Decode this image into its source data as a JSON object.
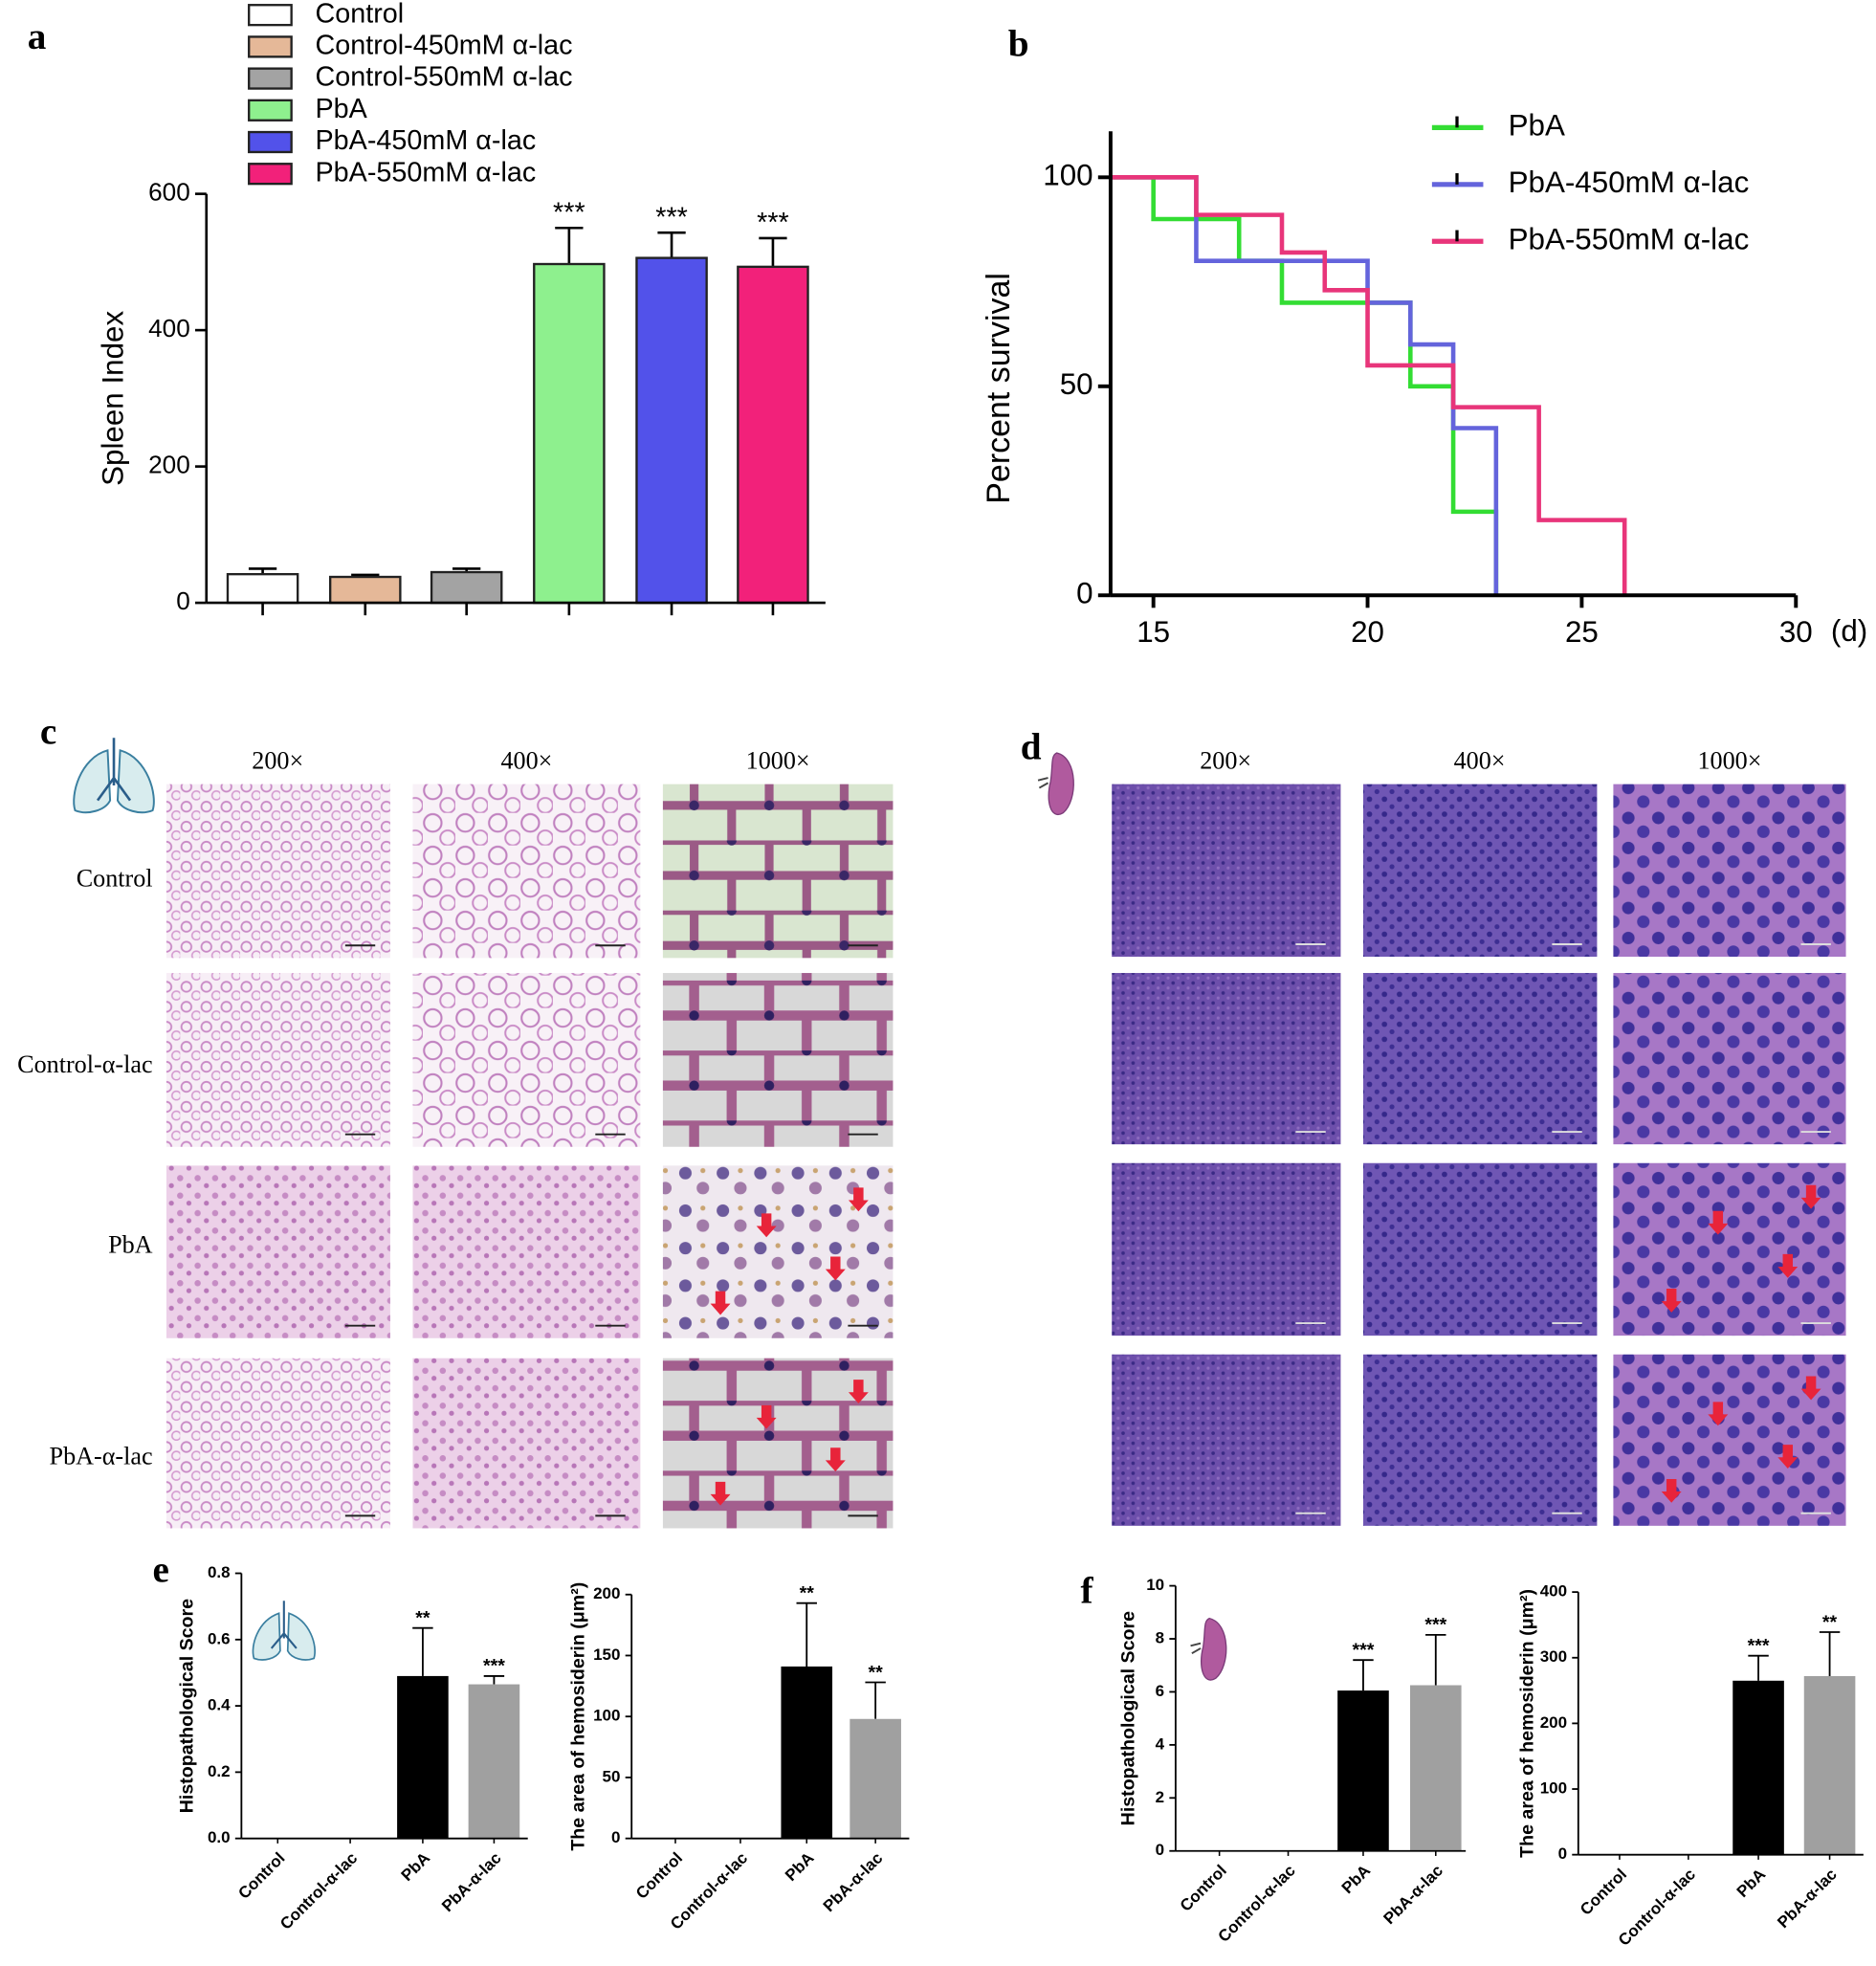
{
  "panel_labels": [
    "a",
    "b",
    "c",
    "d",
    "e",
    "f"
  ],
  "histology": [
    {
      "magnifications": [
        "200×",
        "400×",
        "1000×"
      ],
      "groups": [
        "Control",
        "Control-α-lac",
        "PbA",
        "PbA-α-lac"
      ]
    },
    {
      "magnifications": [
        "200×",
        "400×",
        "1000×"
      ]
    }
  ],
  "chart_data": [
    {
      "type": "bar",
      "ylabel": "Spleen Index",
      "ylim": [
        0,
        600
      ],
      "yticks": [
        0,
        200,
        400,
        600
      ],
      "series": [
        {
          "name": "Control",
          "color": "#ffffff",
          "values": [
            42
          ],
          "errors": [
            8
          ]
        },
        {
          "name": "Control-450mM α-lac",
          "color": "#e5b898",
          "values": [
            38
          ],
          "errors": [
            3
          ]
        },
        {
          "name": "Control-550mM α-lac",
          "color": "#a3a3a3",
          "values": [
            45
          ],
          "errors": [
            5
          ]
        },
        {
          "name": "PbA",
          "color": "#8ef08e",
          "values": [
            497
          ],
          "errors": [
            53
          ],
          "annotations": [
            "***"
          ]
        },
        {
          "name": "PbA-450mM α-lac",
          "color": "#5252ea",
          "values": [
            506
          ],
          "errors": [
            37
          ],
          "annotations": [
            "***"
          ]
        },
        {
          "name": "PbA-550mM α-lac",
          "color": "#f2217a",
          "values": [
            493
          ],
          "errors": [
            42
          ],
          "annotations": [
            "***"
          ]
        }
      ]
    },
    {
      "type": "line",
      "drawstyle": "steps-post",
      "ylabel": "Percent survival",
      "xlabel": "(d)",
      "xlim": [
        14,
        30
      ],
      "xticks": [
        15,
        20,
        25,
        30
      ],
      "ylim": [
        0,
        111
      ],
      "yticks": [
        0,
        50,
        100
      ],
      "series": [
        {
          "name": "PbA",
          "color": "#33dd33",
          "x": [
            14,
            15,
            17,
            18,
            21,
            22,
            23
          ],
          "values": [
            100,
            90,
            80,
            70,
            50,
            20,
            0
          ]
        },
        {
          "name": "PbA-450mM α-lac",
          "color": "#6464dc",
          "x": [
            14,
            16,
            20,
            21,
            22,
            23
          ],
          "values": [
            100,
            80,
            70,
            60,
            40,
            0
          ]
        },
        {
          "name": "PbA-550mM α-lac",
          "color": "#e8357a",
          "x": [
            14,
            16,
            18,
            19,
            20,
            22,
            24,
            26
          ],
          "values": [
            100,
            91,
            82,
            73,
            55,
            45,
            18,
            0
          ]
        }
      ]
    },
    {
      "type": "bar",
      "ylabel": "Histopathological Score",
      "ylim": [
        0,
        0.8
      ],
      "yticks": [
        {
          "value": 0,
          "label": "0.0"
        },
        0.2,
        0.4,
        0.6,
        0.8
      ],
      "categories": [
        "Control",
        "Control-α-lac",
        "PbA",
        "PbA-α-lac"
      ],
      "values": [
        0,
        0,
        0.49,
        0.465
      ],
      "errors": [
        0,
        0,
        0.145,
        0.025
      ],
      "annotations": [
        null,
        null,
        "**",
        "***"
      ],
      "colors": [
        "#000000",
        "#a0a0a0",
        "#000000",
        "#a0a0a0"
      ]
    },
    {
      "type": "bar",
      "ylabel": "The area of hemosiderin (μm²)",
      "ylim": [
        0,
        200
      ],
      "yticks": [
        0,
        50,
        100,
        150,
        200
      ],
      "categories": [
        "Control",
        "Control-α-lac",
        "PbA",
        "PbA-α-lac"
      ],
      "values": [
        0,
        0,
        141,
        98
      ],
      "errors": [
        0,
        0,
        52,
        30
      ],
      "annotations": [
        null,
        null,
        "**",
        "**"
      ],
      "colors": [
        "#000000",
        "#a0a0a0",
        "#000000",
        "#a0a0a0"
      ]
    },
    {
      "type": "bar",
      "ylabel": "Histopathological Score",
      "ylim": [
        0,
        10
      ],
      "yticks": [
        0,
        2,
        4,
        6,
        8,
        10
      ],
      "categories": [
        "Control",
        "Control-α-lac",
        "PbA",
        "PbA-α-lac"
      ],
      "values": [
        0,
        0,
        6.05,
        6.25
      ],
      "errors": [
        0,
        0,
        1.15,
        1.9
      ],
      "annotations": [
        null,
        null,
        "***",
        "***"
      ],
      "colors": [
        "#000000",
        "#a0a0a0",
        "#000000",
        "#a0a0a0"
      ]
    },
    {
      "type": "bar",
      "ylabel": "The area of hemosiderin (μm²)",
      "ylim": [
        0,
        400
      ],
      "yticks": [
        0,
        100,
        200,
        300,
        400
      ],
      "categories": [
        "Control",
        "Control-α-lac",
        "PbA",
        "PbA-α-lac"
      ],
      "values": [
        0,
        0,
        265,
        272
      ],
      "errors": [
        0,
        0,
        38,
        67
      ],
      "annotations": [
        null,
        null,
        "***",
        "**"
      ],
      "colors": [
        "#000000",
        "#a0a0a0",
        "#000000",
        "#a0a0a0"
      ]
    }
  ]
}
